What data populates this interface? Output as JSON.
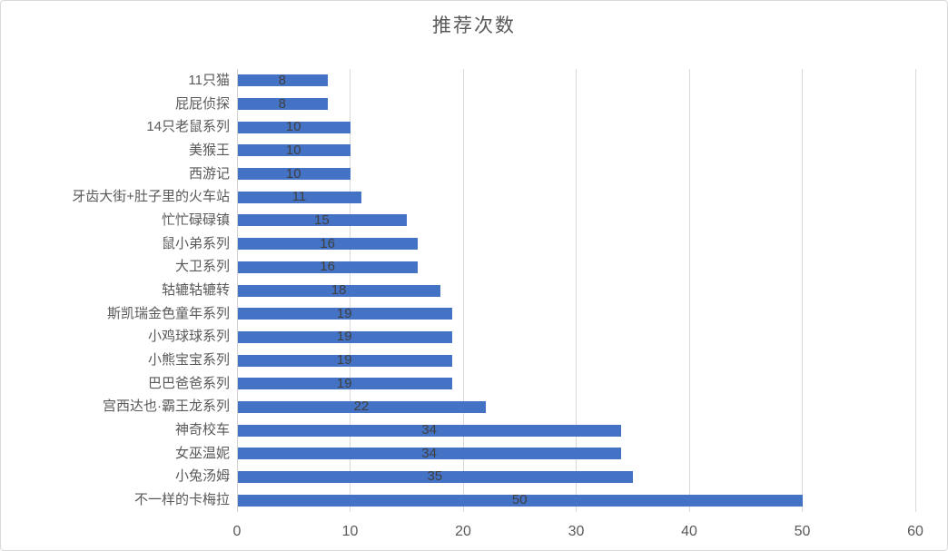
{
  "title": "推荐次数",
  "colors": {
    "bar": "#4472C4",
    "gridline": "#D9D9D9",
    "axis_line": "#D0D0D0",
    "title_text": "#595959",
    "tick_text": "#595959",
    "data_label_text": "#404040",
    "frame_border": "#D9D9D9",
    "background": "#FFFFFF"
  },
  "chart_data": {
    "type": "bar",
    "orientation": "horizontal",
    "title": "推荐次数",
    "categories": [
      "11只猫",
      "屁屁侦探",
      "14只老鼠系列",
      "美猴王",
      "西游记",
      "牙齿大街+肚子里的火车站",
      "忙忙碌碌镇",
      "鼠小弟系列",
      "大卫系列",
      "轱辘轱辘转",
      "斯凯瑞金色童年系列",
      "小鸡球球系列",
      "小熊宝宝系列",
      "巴巴爸爸系列",
      "宫西达也·霸王龙系列",
      "神奇校车",
      "女巫温妮",
      "小兔汤姆",
      "不一样的卡梅拉"
    ],
    "values": [
      8,
      8,
      10,
      10,
      10,
      11,
      15,
      16,
      16,
      18,
      19,
      19,
      19,
      19,
      22,
      34,
      34,
      35,
      50
    ],
    "xlabel": "",
    "ylabel": "",
    "xlim": [
      0,
      60
    ],
    "xticks": [
      0,
      10,
      20,
      30,
      40,
      50,
      60
    ],
    "grid": true,
    "legend": false,
    "data_label_position": "center"
  }
}
